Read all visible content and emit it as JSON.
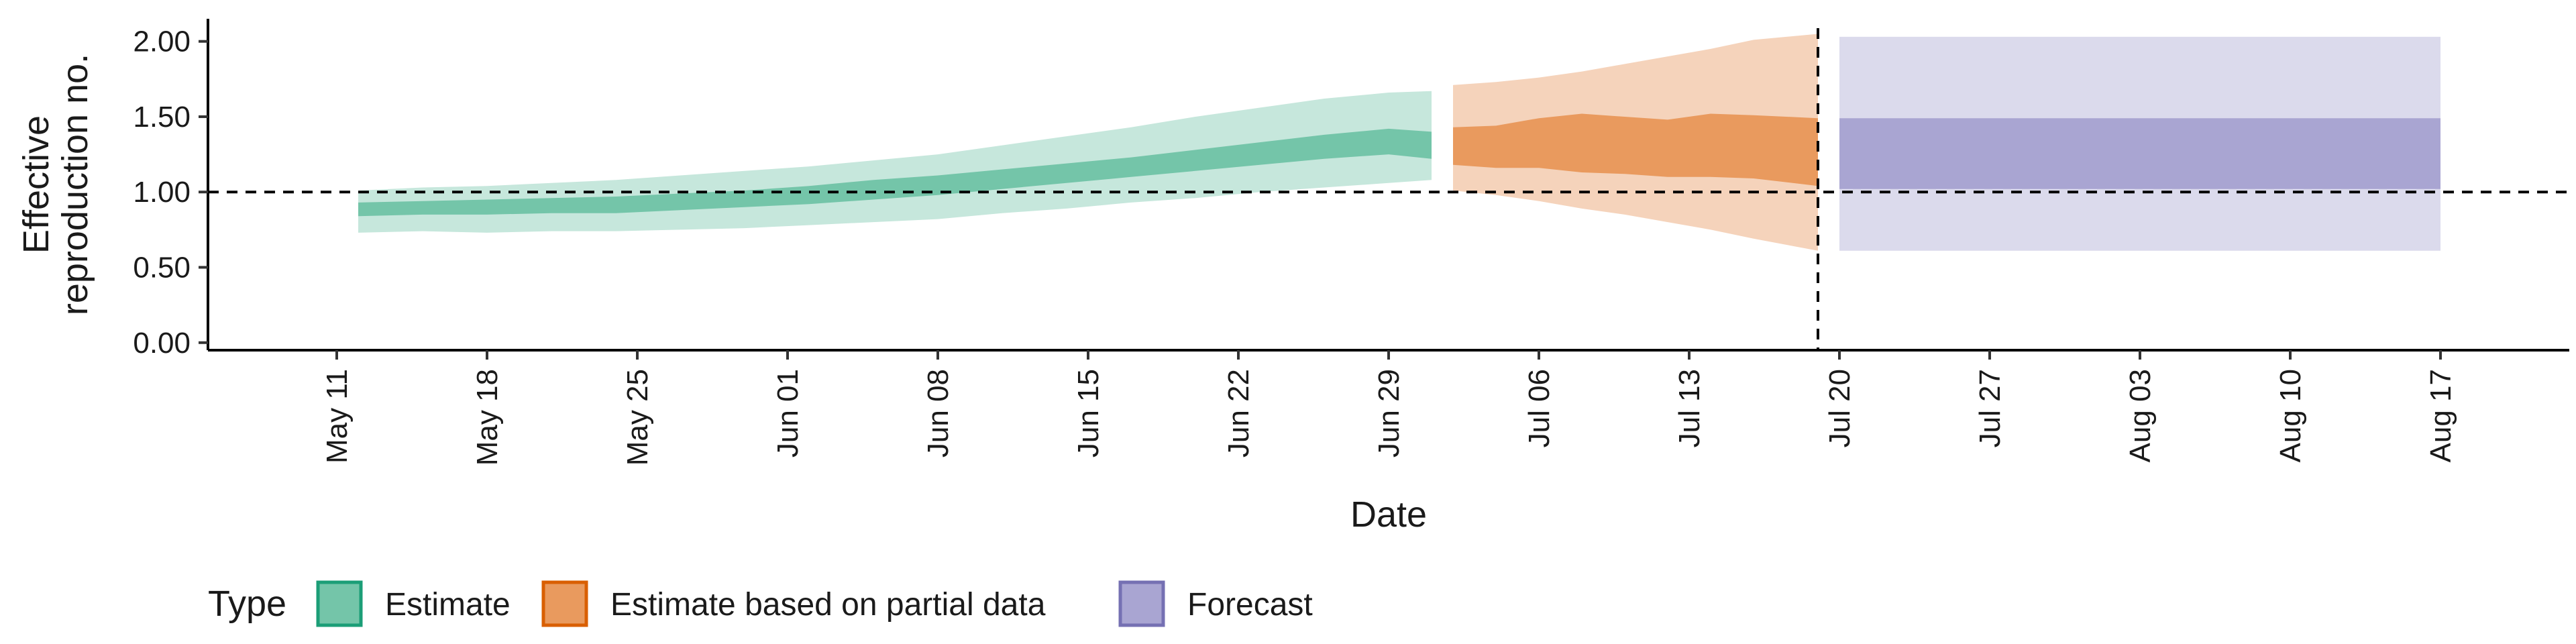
{
  "chart_data": {
    "type": "area",
    "xlabel": "Date",
    "ylabel_lines": [
      "Effective",
      "reproduction no."
    ],
    "ylim": [
      -0.05,
      2.15
    ],
    "yticks": [
      0.0,
      0.5,
      1.0,
      1.5,
      2.0
    ],
    "ytick_labels": [
      "0.00",
      "0.50",
      "1.00",
      "1.50",
      "2.00"
    ],
    "xlim": [
      "2020-05-05",
      "2020-08-23"
    ],
    "xticks": [
      "2020-05-11",
      "2020-05-18",
      "2020-05-25",
      "2020-06-01",
      "2020-06-08",
      "2020-06-15",
      "2020-06-22",
      "2020-06-29",
      "2020-07-06",
      "2020-07-13",
      "2020-07-20",
      "2020-07-27",
      "2020-08-03",
      "2020-08-10",
      "2020-08-17"
    ],
    "xtick_labels": [
      "May 11",
      "May 18",
      "May 25",
      "Jun 01",
      "Jun 08",
      "Jun 15",
      "Jun 22",
      "Jun 29",
      "Jul 06",
      "Jul 13",
      "Jul 20",
      "Jul 27",
      "Aug 03",
      "Aug 10",
      "Aug 17"
    ],
    "reference_line_y": 1.0,
    "reference_line_x": "2020-07-19",
    "legend": {
      "title": "Type",
      "position": "bottom-left",
      "items": [
        "Estimate",
        "Estimate based on partial data",
        "Forecast"
      ]
    },
    "series": [
      {
        "name": "Estimate",
        "color": "#1b9e77",
        "fill_inner": "#74c5a9",
        "fill_outer": "#c6e7dc",
        "x": [
          "2020-05-12",
          "2020-05-15",
          "2020-05-18",
          "2020-05-21",
          "2020-05-24",
          "2020-05-27",
          "2020-05-30",
          "2020-06-02",
          "2020-06-05",
          "2020-06-08",
          "2020-06-11",
          "2020-06-14",
          "2020-06-17",
          "2020-06-20",
          "2020-06-23",
          "2020-06-26",
          "2020-06-29",
          "2020-07-01"
        ],
        "lower_90": [
          0.73,
          0.74,
          0.73,
          0.74,
          0.74,
          0.75,
          0.76,
          0.78,
          0.8,
          0.82,
          0.86,
          0.89,
          0.93,
          0.96,
          1.0,
          1.03,
          1.06,
          1.08
        ],
        "lower_50": [
          0.84,
          0.85,
          0.85,
          0.86,
          0.86,
          0.88,
          0.9,
          0.92,
          0.95,
          0.98,
          1.02,
          1.06,
          1.1,
          1.14,
          1.18,
          1.22,
          1.25,
          1.22
        ],
        "upper_50": [
          0.93,
          0.94,
          0.95,
          0.96,
          0.97,
          0.99,
          1.01,
          1.04,
          1.08,
          1.11,
          1.15,
          1.19,
          1.23,
          1.28,
          1.33,
          1.38,
          1.42,
          1.4
        ],
        "upper_90": [
          1.01,
          1.03,
          1.04,
          1.06,
          1.08,
          1.11,
          1.14,
          1.17,
          1.21,
          1.25,
          1.31,
          1.37,
          1.43,
          1.5,
          1.56,
          1.62,
          1.66,
          1.67
        ]
      },
      {
        "name": "Estimate based on partial data",
        "color": "#d95f02",
        "fill_inner": "#e99a5e",
        "fill_outer": "#f5d3bb",
        "x": [
          "2020-07-02",
          "2020-07-04",
          "2020-07-06",
          "2020-07-08",
          "2020-07-10",
          "2020-07-12",
          "2020-07-14",
          "2020-07-16",
          "2020-07-19"
        ],
        "lower_90": [
          1.01,
          0.98,
          0.94,
          0.89,
          0.85,
          0.8,
          0.75,
          0.69,
          0.61
        ],
        "lower_50": [
          1.18,
          1.16,
          1.16,
          1.13,
          1.12,
          1.1,
          1.1,
          1.09,
          1.04
        ],
        "upper_50": [
          1.43,
          1.44,
          1.49,
          1.52,
          1.5,
          1.48,
          1.52,
          1.51,
          1.49
        ],
        "upper_90": [
          1.71,
          1.73,
          1.76,
          1.8,
          1.85,
          1.9,
          1.95,
          2.01,
          2.05
        ]
      },
      {
        "name": "Forecast",
        "color": "#7570b3",
        "fill_inner": "#a9a5d2",
        "fill_outer": "#dbdaec",
        "x": [
          "2020-07-20",
          "2020-08-17"
        ],
        "lower_90": [
          0.61,
          0.61
        ],
        "lower_50": [
          1.02,
          1.02
        ],
        "upper_50": [
          1.49,
          1.49
        ],
        "upper_90": [
          2.03,
          2.03
        ]
      }
    ]
  }
}
